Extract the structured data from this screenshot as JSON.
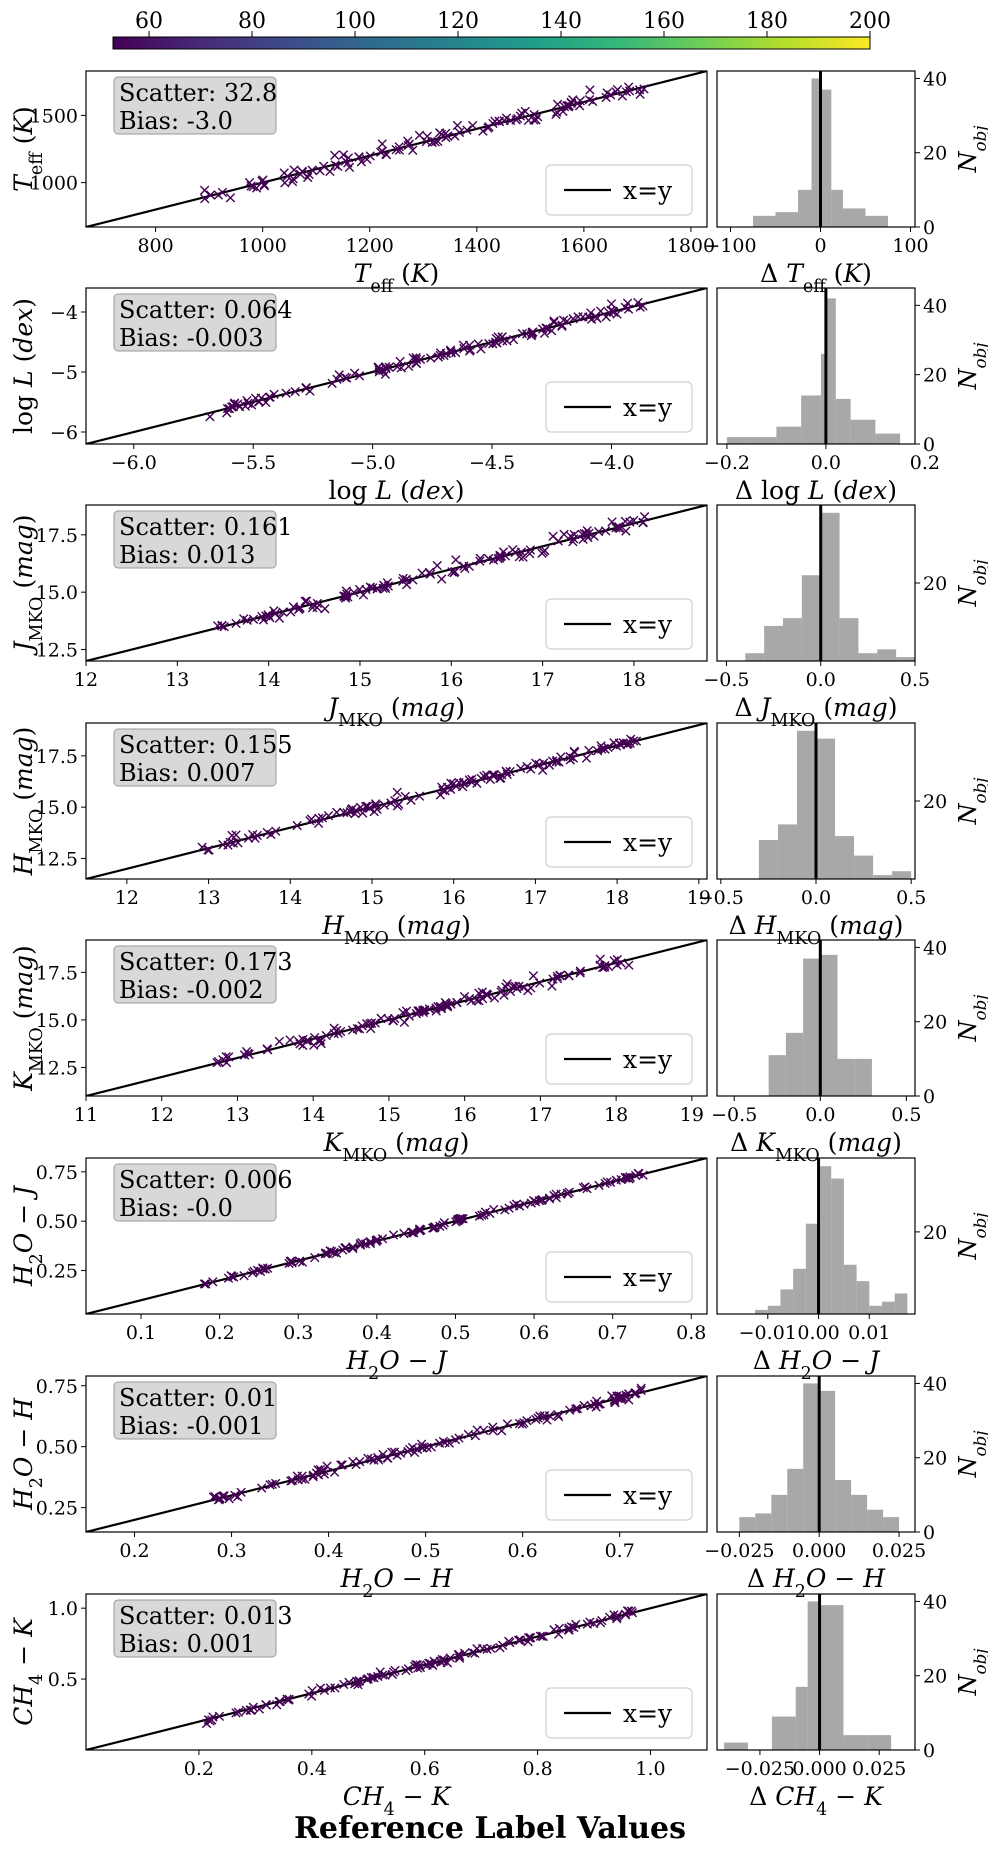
{
  "figure": {
    "footer_label": "Reference Label Values",
    "legend_label": "x=y",
    "hist_ylabel": "N_obj",
    "colors": {
      "scatter": "#440154",
      "hist": "#a8a8a8",
      "statbox": "#d8d8d8",
      "line": "#000000"
    }
  },
  "colorbar": {
    "ticks": [
      "60",
      "80",
      "100",
      "120",
      "140",
      "160",
      "180",
      "200"
    ],
    "min": 53,
    "max": 200,
    "stops": [
      "#440154",
      "#482878",
      "#3e4989",
      "#31688e",
      "#26828e",
      "#1f9e89",
      "#35b779",
      "#6ece58",
      "#b5de2b",
      "#fde725"
    ]
  },
  "chart_data": [
    {
      "type": "scatter",
      "name": "teff",
      "xlabel": "T_eff (K)",
      "ylabel": "T_eff (K)",
      "xlim": [
        670,
        1830
      ],
      "ylim": [
        670,
        1830
      ],
      "xticks": [
        "800",
        "1000",
        "1200",
        "1400",
        "1600",
        "1800"
      ],
      "yticks": [
        "1000",
        "1500"
      ],
      "scatter": "32.8",
      "bias": "-3.0",
      "stats_text": {
        "scatter": "Scatter: 32.8",
        "bias": "Bias: -3.0"
      },
      "n": 120,
      "spread": 32.8,
      "hist": {
        "type": "bar",
        "xlabel": "Δ T_eff (K)",
        "xlim": [
          -115,
          105
        ],
        "ymax": 42,
        "xticks": [
          "−100",
          "0",
          "100"
        ],
        "yticks": [
          "0",
          "20",
          "40"
        ],
        "edges": [
          -75,
          -50,
          -25,
          -10,
          0,
          12,
          25,
          50,
          75
        ],
        "counts": [
          3,
          4,
          10,
          40,
          37,
          10,
          5,
          3
        ]
      }
    },
    {
      "type": "scatter",
      "name": "logl",
      "xlabel": "log L (dex)",
      "ylabel": "log L (dex)",
      "xlim": [
        -6.2,
        -3.6
      ],
      "ylim": [
        -6.2,
        -3.6
      ],
      "xticks": [
        "−6.0",
        "−5.5",
        "−5.0",
        "−4.5",
        "−4.0"
      ],
      "yticks": [
        "−6",
        "−5",
        "−4"
      ],
      "scatter": "0.064",
      "bias": "-0.003",
      "stats_text": {
        "scatter": "Scatter: 0.064",
        "bias": "Bias: -0.003"
      },
      "n": 120,
      "spread": 0.064,
      "hist": {
        "type": "bar",
        "xlabel": "Δ log L (dex)",
        "xlim": [
          -0.22,
          0.18
        ],
        "ymax": 45,
        "xticks": [
          "−0.2",
          "0.0",
          "0.2"
        ],
        "yticks": [
          "0",
          "20",
          "40"
        ],
        "edges": [
          -0.2,
          -0.15,
          -0.1,
          -0.05,
          -0.01,
          0.0,
          0.02,
          0.05,
          0.1,
          0.15
        ],
        "counts": [
          2,
          2,
          5,
          14,
          26,
          42,
          13,
          7,
          3
        ]
      }
    },
    {
      "type": "scatter",
      "name": "jmko",
      "xlabel": "J_MKO (mag)",
      "ylabel": "J_MKO (mag)",
      "xlim": [
        12,
        18.8
      ],
      "ylim": [
        12,
        18.8
      ],
      "xticks": [
        "12",
        "13",
        "14",
        "15",
        "16",
        "17",
        "18"
      ],
      "yticks": [
        "12.5",
        "15.0",
        "17.5"
      ],
      "scatter": "0.161",
      "bias": "0.013",
      "stats_text": {
        "scatter": "Scatter: 0.161",
        "bias": "Bias: 0.013"
      },
      "n": 120,
      "spread": 0.161,
      "hist": {
        "type": "bar",
        "xlabel": "Δ J_MKO (mag)",
        "xlim": [
          -0.55,
          0.5
        ],
        "ymax": 40,
        "xticks": [
          "−0.5",
          "0.0",
          "0.5"
        ],
        "yticks": [
          "20"
        ],
        "edges": [
          -0.4,
          -0.3,
          -0.2,
          -0.1,
          0,
          0.1,
          0.2,
          0.3,
          0.4,
          0.5
        ],
        "counts": [
          2,
          9,
          11,
          22,
          38,
          11,
          2,
          3,
          1
        ]
      }
    },
    {
      "type": "scatter",
      "name": "hmko",
      "xlabel": "H_MKO (mag)",
      "ylabel": "H_MKO (mag)",
      "xlim": [
        11.5,
        19.1
      ],
      "ylim": [
        11.5,
        19.1
      ],
      "xticks": [
        "12",
        "13",
        "14",
        "15",
        "16",
        "17",
        "18",
        "19"
      ],
      "yticks": [
        "12.5",
        "15.0",
        "17.5"
      ],
      "scatter": "0.155",
      "bias": "0.007",
      "stats_text": {
        "scatter": "Scatter: 0.155",
        "bias": "Bias: 0.007"
      },
      "n": 120,
      "spread": 0.155,
      "hist": {
        "type": "bar",
        "xlabel": "Δ H_MKO (mag)",
        "xlim": [
          -0.52,
          0.52
        ],
        "ymax": 40,
        "xticks": [
          "−0.5",
          "0.0",
          "0.5"
        ],
        "yticks": [
          "20"
        ],
        "edges": [
          -0.3,
          -0.2,
          -0.1,
          0,
          0.1,
          0.2,
          0.3,
          0.4,
          0.5
        ],
        "counts": [
          10,
          14,
          38,
          36,
          11,
          6,
          1,
          2
        ]
      }
    },
    {
      "type": "scatter",
      "name": "kmko",
      "xlabel": "K_MKO (mag)",
      "ylabel": "K_MKO (mag)",
      "xlim": [
        11,
        19.2
      ],
      "ylim": [
        11,
        19.2
      ],
      "xticks": [
        "11",
        "12",
        "13",
        "14",
        "15",
        "16",
        "17",
        "18",
        "19"
      ],
      "yticks": [
        "12.5",
        "15.0",
        "17.5"
      ],
      "scatter": "0.173",
      "bias": "-0.002",
      "stats_text": {
        "scatter": "Scatter: 0.173",
        "bias": "Bias: -0.002"
      },
      "n": 120,
      "spread": 0.173,
      "hist": {
        "type": "bar",
        "xlabel": "Δ K_MKO (mag)",
        "xlim": [
          -0.6,
          0.55
        ],
        "ymax": 42,
        "xticks": [
          "−0.5",
          "0.0",
          "0.5"
        ],
        "yticks": [
          "0",
          "20",
          "40"
        ],
        "edges": [
          -0.3,
          -0.2,
          -0.1,
          0,
          0.1,
          0.2,
          0.3
        ],
        "counts": [
          11,
          17,
          37,
          38,
          10,
          10
        ]
      }
    },
    {
      "type": "scatter",
      "name": "h2oj",
      "xlabel": "H2O − J",
      "ylabel": "H2O − J",
      "xlim": [
        0.03,
        0.82
      ],
      "ylim": [
        0.03,
        0.82
      ],
      "xticks": [
        "0.1",
        "0.2",
        "0.3",
        "0.4",
        "0.5",
        "0.6",
        "0.7",
        "0.8"
      ],
      "yticks": [
        "0.25",
        "0.50",
        "0.75"
      ],
      "scatter": "0.006",
      "bias": "-0.0",
      "stats_text": {
        "scatter": "Scatter: 0.006",
        "bias": "Bias: -0.0"
      },
      "n": 120,
      "spread": 0.006,
      "hist": {
        "type": "bar",
        "xlabel": "Δ H2O − J",
        "xlim": [
          -0.02,
          0.019
        ],
        "ymax": 38,
        "xticks": [
          "−0.01",
          "0.00",
          "0.01"
        ],
        "yticks": [
          "20"
        ],
        "edges": [
          -0.0125,
          -0.01,
          -0.0075,
          -0.005,
          -0.0025,
          0,
          0.0025,
          0.005,
          0.0075,
          0.01,
          0.0125,
          0.015,
          0.0175
        ],
        "counts": [
          1,
          2,
          6,
          11,
          22,
          36,
          33,
          12,
          8,
          2,
          3,
          5
        ]
      }
    },
    {
      "type": "scatter",
      "name": "h2oh",
      "xlabel": "H2O − H",
      "ylabel": "H2O − H",
      "xlim": [
        0.15,
        0.79
      ],
      "ylim": [
        0.15,
        0.79
      ],
      "xticks": [
        "0.2",
        "0.3",
        "0.4",
        "0.5",
        "0.6",
        "0.7"
      ],
      "yticks": [
        "0.25",
        "0.50",
        "0.75"
      ],
      "scatter": "0.01",
      "bias": "-0.001",
      "stats_text": {
        "scatter": "Scatter: 0.01",
        "bias": "Bias: -0.001"
      },
      "n": 120,
      "spread": 0.01,
      "hist": {
        "type": "bar",
        "xlabel": "Δ H2O − H",
        "xlim": [
          -0.032,
          0.03
        ],
        "ymax": 42,
        "xticks": [
          "−0.025",
          "0.000",
          "0.025"
        ],
        "yticks": [
          "0",
          "20",
          "40"
        ],
        "edges": [
          -0.025,
          -0.02,
          -0.015,
          -0.01,
          -0.005,
          0,
          0.005,
          0.01,
          0.015,
          0.02,
          0.025
        ],
        "counts": [
          4,
          5,
          10,
          17,
          40,
          38,
          14,
          10,
          6,
          4
        ]
      }
    },
    {
      "type": "scatter",
      "name": "ch4k",
      "xlabel": "CH4 − K",
      "ylabel": "CH4 − K",
      "xlim": [
        0.0,
        1.1
      ],
      "ylim": [
        0.0,
        1.1
      ],
      "xticks": [
        "0.2",
        "0.4",
        "0.6",
        "0.8",
        "1.0"
      ],
      "yticks": [
        "0.5",
        "1.0"
      ],
      "scatter": "0.013",
      "bias": "0.001",
      "stats_text": {
        "scatter": "Scatter: 0.013",
        "bias": "Bias: 0.001"
      },
      "n": 120,
      "spread": 0.013,
      "hist": {
        "type": "bar",
        "xlabel": "Δ CH4 − K",
        "xlim": [
          -0.043,
          0.04
        ],
        "ymax": 42,
        "xticks": [
          "−0.025",
          "0.000",
          "0.025"
        ],
        "yticks": [
          "0",
          "20",
          "40"
        ],
        "edges": [
          -0.04,
          -0.03,
          -0.02,
          -0.01,
          -0.005,
          0,
          0.01,
          0.02,
          0.03
        ],
        "counts": [
          2,
          0,
          9,
          17,
          40,
          39,
          4,
          4
        ]
      }
    }
  ]
}
